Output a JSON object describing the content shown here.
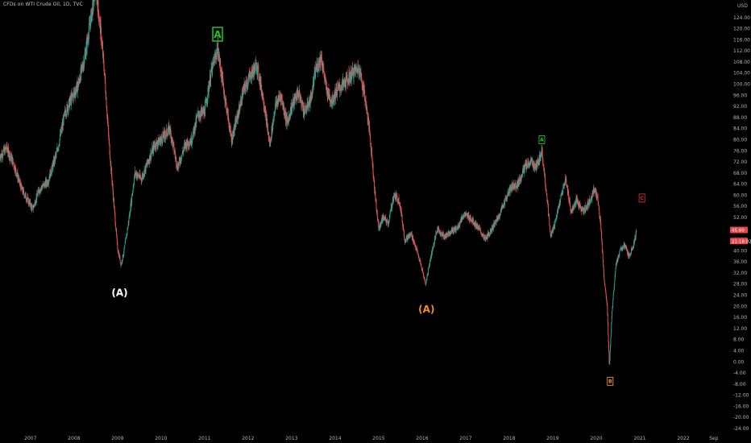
{
  "header": {
    "title": "CFDs on WTI Crude Oil, 1D, TVC"
  },
  "chart_data": {
    "type": "candlestick",
    "currency": "USD",
    "x_axis": {
      "tick_labels": [
        "2007",
        "2008",
        "2009",
        "2010",
        "2011",
        "2012",
        "2013",
        "2014",
        "2015",
        "2016",
        "2017",
        "2018",
        "2019",
        "2020",
        "2021",
        "2022",
        "Sep"
      ],
      "range": [
        2006.3,
        2023.0
      ]
    },
    "y_axis": {
      "ylim": [
        -24,
        128
      ],
      "tick_values": [
        124,
        120,
        116,
        112,
        108,
        104,
        100,
        96,
        92,
        88,
        84,
        80,
        76,
        72,
        68,
        64,
        60,
        56,
        52,
        48,
        44,
        40,
        36,
        32,
        28,
        24,
        20,
        16,
        12,
        8,
        4,
        0,
        -4,
        -8,
        -12,
        -16,
        -20,
        -24
      ],
      "tick_labels": [
        "124.00",
        "120.00",
        "116.00",
        "112.00",
        "108.00",
        "104.00",
        "100.00",
        "96.00",
        "92.00",
        "88.00",
        "84.00",
        "80.00",
        "76.00",
        "72.00",
        "68.00",
        "64.00",
        "60.00",
        "56.00",
        "52.00",
        "48.00",
        "44.00",
        "40.00",
        "36.00",
        "32.00",
        "28.00",
        "24.00",
        "20.00",
        "16.00",
        "12.00",
        "8.00",
        "4.00",
        "0.00",
        "-4.00",
        "-8.00",
        "-12.00",
        "-16.00",
        "-20.00",
        "-24.00"
      ]
    },
    "price_series": [
      [
        2006.3,
        74
      ],
      [
        2006.45,
        77
      ],
      [
        2006.6,
        72
      ],
      [
        2006.8,
        62
      ],
      [
        2006.95,
        58
      ],
      [
        2007.05,
        55
      ],
      [
        2007.2,
        62
      ],
      [
        2007.4,
        65
      ],
      [
        2007.6,
        75
      ],
      [
        2007.8,
        90
      ],
      [
        2007.95,
        95
      ],
      [
        2008.1,
        100
      ],
      [
        2008.25,
        110
      ],
      [
        2008.4,
        125
      ],
      [
        2008.5,
        135
      ],
      [
        2008.62,
        118
      ],
      [
        2008.7,
        104
      ],
      [
        2008.8,
        80
      ],
      [
        2008.92,
        56
      ],
      [
        2009.0,
        41
      ],
      [
        2009.08,
        35
      ],
      [
        2009.15,
        40
      ],
      [
        2009.25,
        50
      ],
      [
        2009.4,
        68
      ],
      [
        2009.55,
        66
      ],
      [
        2009.7,
        72
      ],
      [
        2009.85,
        78
      ],
      [
        2010.0,
        80
      ],
      [
        2010.2,
        84
      ],
      [
        2010.38,
        70
      ],
      [
        2010.55,
        78
      ],
      [
        2010.7,
        80
      ],
      [
        2010.85,
        89
      ],
      [
        2011.0,
        90
      ],
      [
        2011.15,
        104
      ],
      [
        2011.3,
        113
      ],
      [
        2011.45,
        97
      ],
      [
        2011.62,
        80
      ],
      [
        2011.75,
        88
      ],
      [
        2011.9,
        98
      ],
      [
        2012.05,
        103
      ],
      [
        2012.2,
        107
      ],
      [
        2012.35,
        95
      ],
      [
        2012.5,
        78
      ],
      [
        2012.62,
        92
      ],
      [
        2012.75,
        96
      ],
      [
        2012.9,
        86
      ],
      [
        2013.0,
        92
      ],
      [
        2013.15,
        97
      ],
      [
        2013.3,
        90
      ],
      [
        2013.45,
        95
      ],
      [
        2013.55,
        105
      ],
      [
        2013.68,
        110
      ],
      [
        2013.8,
        98
      ],
      [
        2013.92,
        94
      ],
      [
        2014.05,
        98
      ],
      [
        2014.2,
        100
      ],
      [
        2014.4,
        104
      ],
      [
        2014.55,
        106
      ],
      [
        2014.68,
        96
      ],
      [
        2014.8,
        82
      ],
      [
        2014.92,
        60
      ],
      [
        2015.0,
        48
      ],
      [
        2015.1,
        52
      ],
      [
        2015.22,
        50
      ],
      [
        2015.35,
        60
      ],
      [
        2015.48,
        58
      ],
      [
        2015.6,
        44
      ],
      [
        2015.75,
        46
      ],
      [
        2015.88,
        40
      ],
      [
        2016.0,
        33
      ],
      [
        2016.08,
        28
      ],
      [
        2016.2,
        38
      ],
      [
        2016.35,
        48
      ],
      [
        2016.5,
        45
      ],
      [
        2016.65,
        47
      ],
      [
        2016.8,
        48
      ],
      [
        2016.95,
        53
      ],
      [
        2017.1,
        52
      ],
      [
        2017.3,
        48
      ],
      [
        2017.45,
        44
      ],
      [
        2017.6,
        48
      ],
      [
        2017.75,
        52
      ],
      [
        2017.9,
        58
      ],
      [
        2018.05,
        63
      ],
      [
        2018.2,
        64
      ],
      [
        2018.35,
        70
      ],
      [
        2018.5,
        72
      ],
      [
        2018.62,
        70
      ],
      [
        2018.75,
        76
      ],
      [
        2018.85,
        62
      ],
      [
        2018.95,
        45
      ],
      [
        2019.05,
        50
      ],
      [
        2019.2,
        60
      ],
      [
        2019.3,
        66
      ],
      [
        2019.42,
        54
      ],
      [
        2019.55,
        58
      ],
      [
        2019.7,
        54
      ],
      [
        2019.85,
        58
      ],
      [
        2019.95,
        62
      ],
      [
        2020.02,
        60
      ],
      [
        2020.1,
        50
      ],
      [
        2020.18,
        30
      ],
      [
        2020.25,
        20
      ],
      [
        2020.3,
        -2
      ],
      [
        2020.36,
        18
      ],
      [
        2020.45,
        35
      ],
      [
        2020.55,
        40
      ],
      [
        2020.65,
        42
      ],
      [
        2020.75,
        38
      ],
      [
        2020.85,
        42
      ],
      [
        2020.93,
        47
      ]
    ],
    "annotations": [
      {
        "text": "A",
        "x": 2011.3,
        "y": 118,
        "color": "#22c322",
        "boxed": true,
        "size": "large"
      },
      {
        "text": "(A)",
        "x": 2009.05,
        "y": 25,
        "color": "#ffffff",
        "boxed": false,
        "size": "large"
      },
      {
        "text": "(A)",
        "x": 2016.1,
        "y": 19,
        "color": "#f28b30",
        "boxed": false,
        "size": "large"
      },
      {
        "text": "A",
        "x": 2018.75,
        "y": 80,
        "color": "#22c322",
        "boxed": true,
        "size": "small"
      },
      {
        "text": "B",
        "x": 2020.32,
        "y": -7,
        "color": "#f28b30",
        "boxed": true,
        "size": "small"
      },
      {
        "text": "C",
        "x": 2021.05,
        "y": 59,
        "color": "#d32f2f",
        "boxed": true,
        "size": "small"
      }
    ],
    "price_labels": [
      {
        "text": "45.60",
        "y": 47.5,
        "bg": "#e5454a"
      },
      {
        "text": "21:18:02",
        "y": 43.5,
        "bg": "#e5454a"
      }
    ],
    "colors": {
      "up": "#26a69a",
      "down": "#ef5350",
      "background": "#000000",
      "axis_text": "#b4b4b4"
    }
  }
}
